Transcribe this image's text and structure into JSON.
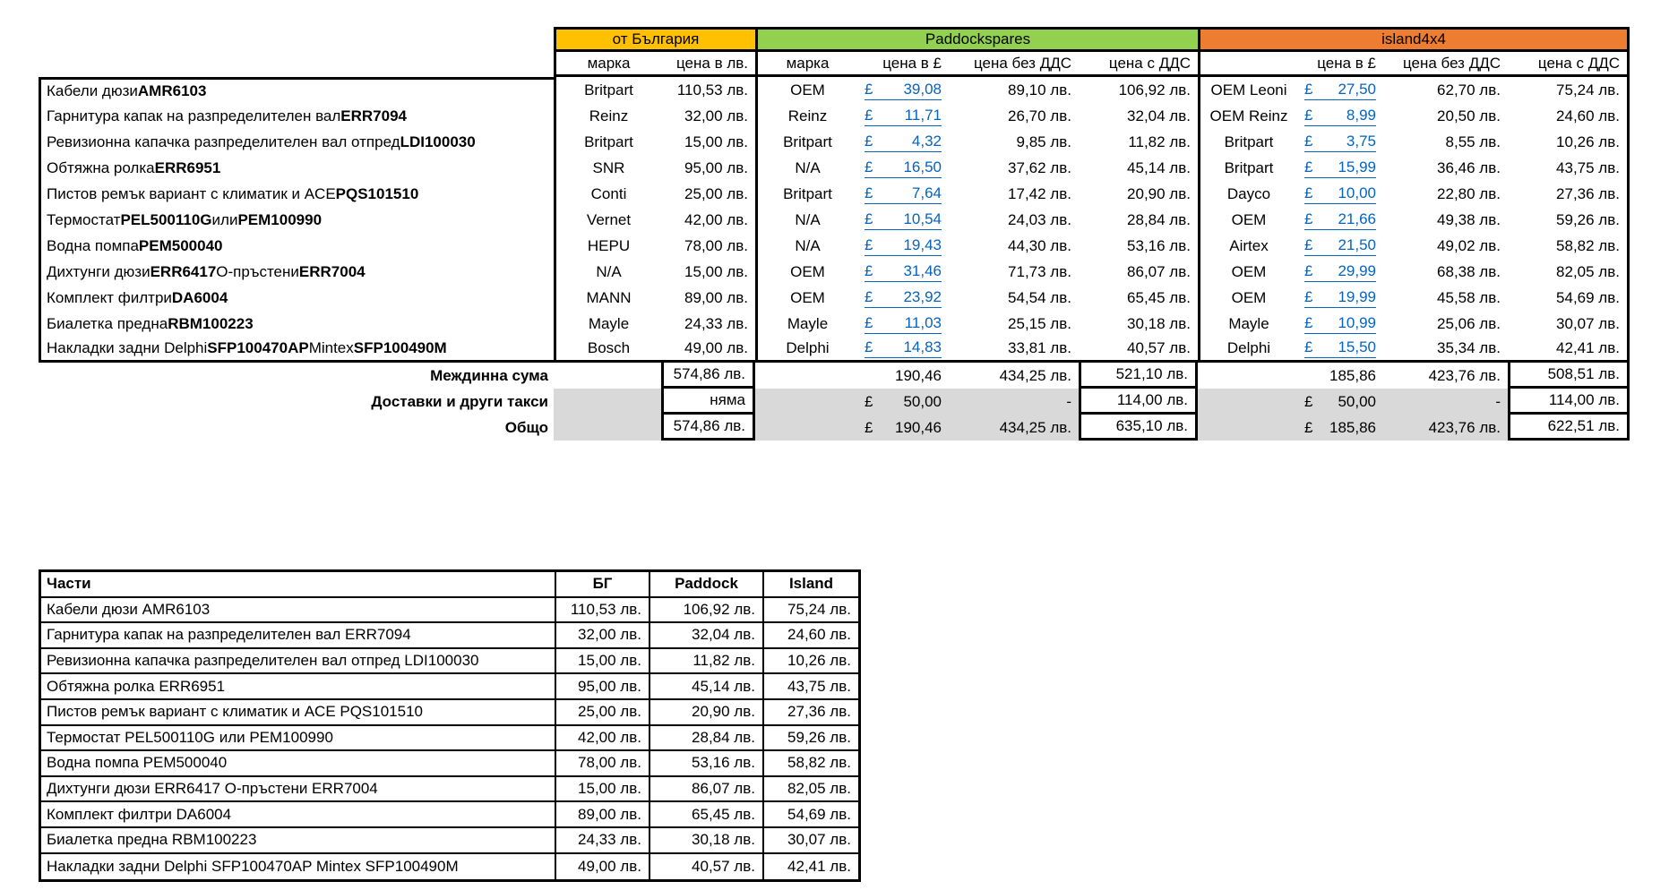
{
  "colors": {
    "bulgaria_header": "#FFC000",
    "paddock_header": "#92D050",
    "island_header": "#ED7D31",
    "shaded_row": "#D9D9D9",
    "hyperlink": "#0563C1"
  },
  "top_table": {
    "currency_symbol": "£",
    "group_headers": [
      {
        "label": "от България",
        "color": "#FFC000"
      },
      {
        "label": "Paddockspares",
        "color": "#92D050"
      },
      {
        "label": "island4x4",
        "color": "#ED7D31"
      }
    ],
    "col_headers": {
      "bg_brand": "марка",
      "bg_price": "цена в лв.",
      "pad_brand": "марка",
      "pad_gbp": "цена в £",
      "pad_novat": "цена без ДДС",
      "pad_vat": "цена с ДДС",
      "isl_brand": "",
      "isl_gbp": "цена в £",
      "isl_novat": "цена без ДДС",
      "isl_vat": "цена с ДДС"
    },
    "rows": [
      {
        "name_rich": [
          {
            "t": "Кабели дюзи ",
            "b": false
          },
          {
            "t": "AMR6103",
            "b": true
          }
        ],
        "bg_brand": "Britpart",
        "bg_price": "110,53 лв.",
        "pad_brand": "OEM",
        "pad_gbp": "39,08",
        "pad_novat": "89,10 лв.",
        "pad_vat": "106,92 лв.",
        "isl_brand": "OEM Leoni",
        "isl_gbp": "27,50",
        "isl_novat": "62,70 лв.",
        "isl_vat": "75,24 лв."
      },
      {
        "name_rich": [
          {
            "t": "Гарнитура капак на разпределителен вал ",
            "b": false
          },
          {
            "t": "ERR7094",
            "b": true
          }
        ],
        "bg_brand": "Reinz",
        "bg_price": "32,00 лв.",
        "pad_brand": "Reinz",
        "pad_gbp": "11,71",
        "pad_novat": "26,70 лв.",
        "pad_vat": "32,04 лв.",
        "isl_brand": "OEM Reinz",
        "isl_gbp": "8,99",
        "isl_novat": "20,50 лв.",
        "isl_vat": "24,60 лв."
      },
      {
        "name_rich": [
          {
            "t": "Ревизионна капачка разпределителен вал отпред ",
            "b": false
          },
          {
            "t": "LDI100030",
            "b": true
          }
        ],
        "bg_brand": "Britpart",
        "bg_price": "15,00 лв.",
        "pad_brand": "Britpart",
        "pad_gbp": "4,32",
        "pad_novat": "9,85 лв.",
        "pad_vat": "11,82 лв.",
        "isl_brand": "Britpart",
        "isl_gbp": "3,75",
        "isl_novat": "8,55 лв.",
        "isl_vat": "10,26 лв."
      },
      {
        "name_rich": [
          {
            "t": "Обтяжна ролка ",
            "b": false
          },
          {
            "t": "ERR6951",
            "b": true
          }
        ],
        "bg_brand": "SNR",
        "bg_price": "95,00 лв.",
        "pad_brand": "N/A",
        "pad_gbp": "16,50",
        "pad_novat": "37,62 лв.",
        "pad_vat": "45,14 лв.",
        "isl_brand": "Britpart",
        "isl_gbp": "15,99",
        "isl_novat": "36,46 лв.",
        "isl_vat": "43,75 лв."
      },
      {
        "name_rich": [
          {
            "t": "Пистов ремък вариант с климатик и ACE ",
            "b": false
          },
          {
            "t": "PQS101510",
            "b": true
          }
        ],
        "bg_brand": "Conti",
        "bg_price": "25,00 лв.",
        "pad_brand": "Britpart",
        "pad_gbp": "7,64",
        "pad_novat": "17,42 лв.",
        "pad_vat": "20,90 лв.",
        "isl_brand": "Dayco",
        "isl_gbp": "10,00",
        "isl_novat": "22,80 лв.",
        "isl_vat": "27,36 лв."
      },
      {
        "name_rich": [
          {
            "t": "Термостат ",
            "b": false
          },
          {
            "t": "PEL500110G",
            "b": true
          },
          {
            "t": " или ",
            "b": false
          },
          {
            "t": "PEM100990",
            "b": true
          }
        ],
        "bg_brand": "Vernet",
        "bg_price": "42,00 лв.",
        "pad_brand": "N/A",
        "pad_gbp": "10,54",
        "pad_novat": "24,03 лв.",
        "pad_vat": "28,84 лв.",
        "isl_brand": "OEM",
        "isl_gbp": "21,66",
        "isl_novat": "49,38 лв.",
        "isl_vat": "59,26 лв."
      },
      {
        "name_rich": [
          {
            "t": "Водна помпа ",
            "b": false
          },
          {
            "t": "PEM500040",
            "b": true
          }
        ],
        "bg_brand": "HEPU",
        "bg_price": "78,00 лв.",
        "pad_brand": "N/A",
        "pad_gbp": "19,43",
        "pad_novat": "44,30 лв.",
        "pad_vat": "53,16 лв.",
        "isl_brand": "Airtex",
        "isl_gbp": "21,50",
        "isl_novat": "49,02 лв.",
        "isl_vat": "58,82 лв."
      },
      {
        "name_rich": [
          {
            "t": "Дихтунги дюзи ",
            "b": false
          },
          {
            "t": "ERR6417",
            "b": true
          },
          {
            "t": " О-пръстени ",
            "b": false
          },
          {
            "t": "ERR7004",
            "b": true
          }
        ],
        "bg_brand": "N/A",
        "bg_price": "15,00 лв.",
        "pad_brand": "OEM",
        "pad_gbp": "31,46",
        "pad_novat": "71,73 лв.",
        "pad_vat": "86,07 лв.",
        "isl_brand": "OEM",
        "isl_gbp": "29,99",
        "isl_novat": "68,38 лв.",
        "isl_vat": "82,05 лв."
      },
      {
        "name_rich": [
          {
            "t": "Комплект филтри ",
            "b": false
          },
          {
            "t": "DA6004",
            "b": true
          }
        ],
        "bg_brand": "MANN",
        "bg_price": "89,00 лв.",
        "pad_brand": "OEM",
        "pad_gbp": "23,92",
        "pad_novat": "54,54 лв.",
        "pad_vat": "65,45 лв.",
        "isl_brand": "OEM",
        "isl_gbp": "19,99",
        "isl_novat": "45,58 лв.",
        "isl_vat": "54,69 лв."
      },
      {
        "name_rich": [
          {
            "t": "Биалетка предна ",
            "b": false
          },
          {
            "t": "RBM100223",
            "b": true
          }
        ],
        "bg_brand": "Mayle",
        "bg_price": "24,33 лв.",
        "pad_brand": "Mayle",
        "pad_gbp": "11,03",
        "pad_novat": "25,15 лв.",
        "pad_vat": "30,18 лв.",
        "isl_brand": "Mayle",
        "isl_gbp": "10,99",
        "isl_novat": "25,06 лв.",
        "isl_vat": "30,07 лв."
      },
      {
        "name_rich": [
          {
            "t": "Накладки задни Delphi ",
            "b": false
          },
          {
            "t": "SFP100470AP",
            "b": true
          },
          {
            "t": " Mintex ",
            "b": false
          },
          {
            "t": "SFP100490M",
            "b": true
          }
        ],
        "bg_brand": "Bosch",
        "bg_price": "49,00 лв.",
        "pad_brand": "Delphi",
        "pad_gbp": "14,83",
        "pad_novat": "33,81 лв.",
        "pad_vat": "40,57 лв.",
        "isl_brand": "Delphi",
        "isl_gbp": "15,50",
        "isl_novat": "35,34 лв.",
        "isl_vat": "42,41 лв."
      }
    ],
    "summary": {
      "subtotal": {
        "label": "Междинна сума",
        "bg": "574,86 лв.",
        "pad_gbp": "190,46",
        "pad_novat": "434,25 лв.",
        "pad_vat": "521,10 лв.",
        "isl_gbp": "185,86",
        "isl_novat": "423,76 лв.",
        "isl_vat": "508,51 лв."
      },
      "shipping": {
        "label": "Доставки и други такси",
        "bg": "няма",
        "pad_gbp": "50,00",
        "pad_novat": "-",
        "pad_vat": "114,00 лв.",
        "isl_gbp": "50,00",
        "isl_novat": "-",
        "isl_vat": "114,00 лв."
      },
      "total": {
        "label": "Общо",
        "bg": "574,86 лв.",
        "pad_gbp": "190,46",
        "pad_novat": "434,25 лв.",
        "pad_vat": "635,10 лв.",
        "isl_gbp": "185,86",
        "isl_novat": "423,76 лв.",
        "isl_vat": "622,51 лв."
      }
    }
  },
  "bottom_table": {
    "headers": {
      "parts": "Части",
      "bg": "БГ",
      "paddock": "Paddock",
      "island": "Island"
    },
    "rows": [
      {
        "name": "Кабели дюзи AMR6103",
        "bg": "110,53 лв.",
        "paddock": "106,92 лв.",
        "island": "75,24 лв."
      },
      {
        "name": "Гарнитура капак на разпределителен вал ERR7094",
        "bg": "32,00 лв.",
        "paddock": "32,04 лв.",
        "island": "24,60 лв."
      },
      {
        "name": "Ревизионна капачка разпределителен вал отпред LDI100030",
        "bg": "15,00 лв.",
        "paddock": "11,82 лв.",
        "island": "10,26 лв."
      },
      {
        "name": "Обтяжна ролка ERR6951",
        "bg": "95,00 лв.",
        "paddock": "45,14 лв.",
        "island": "43,75 лв."
      },
      {
        "name": "Пистов ремък вариант с климатик и ACE PQS101510",
        "bg": "25,00 лв.",
        "paddock": "20,90 лв.",
        "island": "27,36 лв."
      },
      {
        "name": "Термостат PEL500110G или PEM100990",
        "bg": "42,00 лв.",
        "paddock": "28,84 лв.",
        "island": "59,26 лв."
      },
      {
        "name": "Водна помпа PEM500040",
        "bg": "78,00 лв.",
        "paddock": "53,16 лв.",
        "island": "58,82 лв."
      },
      {
        "name": "Дихтунги дюзи ERR6417 О-пръстени ERR7004",
        "bg": "15,00 лв.",
        "paddock": "86,07 лв.",
        "island": "82,05 лв."
      },
      {
        "name": "Комплект филтри DA6004",
        "bg": "89,00 лв.",
        "paddock": "65,45 лв.",
        "island": "54,69 лв."
      },
      {
        "name": "Биалетка предна RBM100223",
        "bg": "24,33 лв.",
        "paddock": "30,18 лв.",
        "island": "30,07 лв."
      },
      {
        "name": "Накладки задни Delphi SFP100470AP Mintex SFP100490M",
        "bg": "49,00 лв.",
        "paddock": "40,57 лв.",
        "island": "42,41 лв."
      }
    ]
  }
}
